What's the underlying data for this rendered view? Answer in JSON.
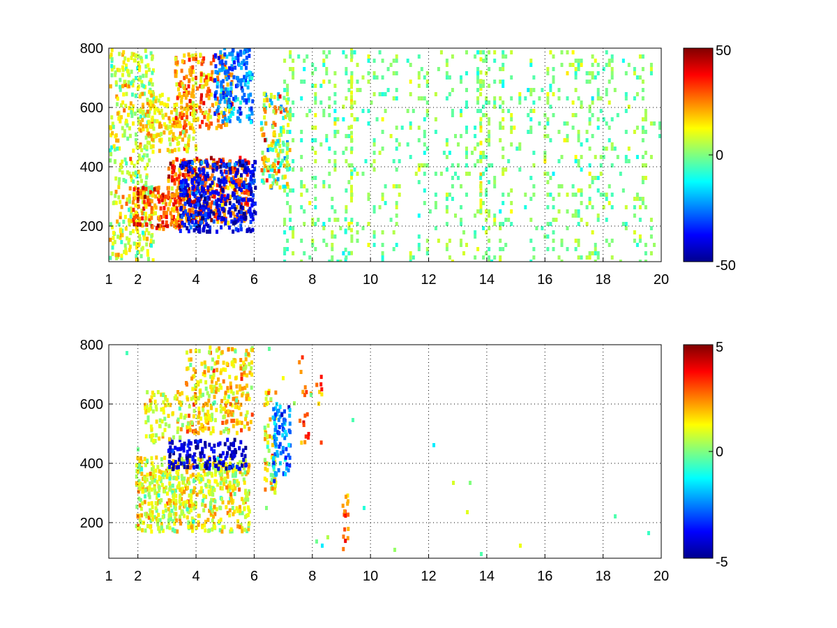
{
  "chart_data": [
    {
      "type": "heatmap",
      "title": "",
      "xlabel": "",
      "ylabel": "",
      "x_ticks": [
        1,
        2,
        4,
        6,
        8,
        10,
        12,
        14,
        16,
        18,
        20
      ],
      "y_ticks": [
        200,
        400,
        600,
        800
      ],
      "xlim": [
        1,
        20
      ],
      "ylim": [
        80,
        800
      ],
      "grid": true,
      "grid_style": "dotted",
      "colorbar": {
        "min": -50,
        "max": 50,
        "ticks": [
          50,
          0,
          -50
        ],
        "colormap": "jet"
      },
      "clusters": [
        {
          "x_range": [
            1.0,
            2.5
          ],
          "y_range": [
            80,
            800
          ],
          "value": 8,
          "spread": 12,
          "density": 0.5
        },
        {
          "x_range": [
            1.8,
            3.5
          ],
          "y_range": [
            190,
            330
          ],
          "value": 26,
          "spread": 14,
          "density": 0.9
        },
        {
          "x_range": [
            3.0,
            5.8
          ],
          "y_range": [
            210,
            430
          ],
          "value": 30,
          "spread": 14,
          "density": 0.85
        },
        {
          "x_range": [
            3.4,
            6.0
          ],
          "y_range": [
            180,
            420
          ],
          "value": -38,
          "spread": 10,
          "density": 0.85
        },
        {
          "x_range": [
            2.0,
            4.0
          ],
          "y_range": [
            450,
            650
          ],
          "value": 14,
          "spread": 10,
          "density": 0.6
        },
        {
          "x_range": [
            3.2,
            5.2
          ],
          "y_range": [
            530,
            780
          ],
          "value": 22,
          "spread": 12,
          "density": 0.6
        },
        {
          "x_range": [
            4.6,
            5.9
          ],
          "y_range": [
            550,
            800
          ],
          "value": -25,
          "spread": 10,
          "density": 0.75
        },
        {
          "x_range": [
            6.2,
            7.2
          ],
          "y_range": [
            330,
            650
          ],
          "value": 5,
          "spread": 22,
          "density": 0.7
        }
      ],
      "stripes": [
        {
          "x": 9.3,
          "y_range": [
            80,
            800
          ],
          "value": 10,
          "density": 0.7
        },
        {
          "x": 13.75,
          "y_range": [
            200,
            800
          ],
          "value": 12,
          "density": 0.6
        },
        {
          "x": 9.1,
          "y_range": [
            80,
            230
          ],
          "value": -8,
          "density": 0.6
        }
      ],
      "background_noise": {
        "x_range": [
          7.0,
          20.0
        ],
        "y_range": [
          80,
          800
        ],
        "value": 0,
        "spread": 8,
        "density": 0.12
      }
    },
    {
      "type": "heatmap",
      "title": "",
      "xlabel": "",
      "ylabel": "",
      "x_ticks": [
        1,
        2,
        4,
        6,
        8,
        10,
        12,
        14,
        16,
        18,
        20
      ],
      "y_ticks": [
        200,
        400,
        600,
        800
      ],
      "xlim": [
        1,
        20
      ],
      "ylim": [
        80,
        800
      ],
      "grid": true,
      "grid_style": "dotted",
      "colorbar": {
        "min": -5,
        "max": 5,
        "ticks": [
          5,
          0,
          -5
        ],
        "colormap": "jet"
      },
      "clusters": [
        {
          "x_range": [
            1.9,
            5.8
          ],
          "y_range": [
            170,
            420
          ],
          "value": 1.0,
          "spread": 1.2,
          "density": 0.85
        },
        {
          "x_range": [
            3.0,
            5.7
          ],
          "y_range": [
            380,
            480
          ],
          "value": -4.2,
          "spread": 0.8,
          "density": 0.7
        },
        {
          "x_range": [
            2.2,
            3.6
          ],
          "y_range": [
            470,
            640
          ],
          "value": 1.0,
          "spread": 1.0,
          "density": 0.5
        },
        {
          "x_range": [
            3.6,
            5.9
          ],
          "y_range": [
            500,
            790
          ],
          "value": 1.5,
          "spread": 1.2,
          "density": 0.6
        },
        {
          "x_range": [
            6.3,
            6.7
          ],
          "y_range": [
            300,
            650
          ],
          "value": 1.2,
          "spread": 1.6,
          "density": 0.6
        },
        {
          "x_range": [
            6.6,
            7.2
          ],
          "y_range": [
            340,
            600
          ],
          "value": -2.5,
          "spread": 1.2,
          "density": 0.75
        },
        {
          "x_range": [
            7.5,
            8.3
          ],
          "y_range": [
            450,
            760
          ],
          "value": 3.0,
          "spread": 1.0,
          "density": 0.15
        },
        {
          "x_range": [
            9.0,
            9.2
          ],
          "y_range": [
            80,
            300
          ],
          "value": 2.5,
          "spread": 1.0,
          "density": 0.5
        }
      ],
      "stripes": [],
      "background_noise": {
        "x_range": [
          1.0,
          20.0
        ],
        "y_range": [
          80,
          800
        ],
        "value": 0,
        "spread": 1,
        "density": 0.002
      }
    }
  ]
}
